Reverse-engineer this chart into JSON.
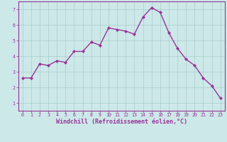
{
  "x": [
    0,
    1,
    2,
    3,
    4,
    5,
    6,
    7,
    8,
    9,
    10,
    11,
    12,
    13,
    14,
    15,
    16,
    17,
    18,
    19,
    20,
    21,
    22,
    23
  ],
  "y": [
    2.6,
    2.6,
    3.5,
    3.4,
    3.7,
    3.6,
    4.3,
    4.3,
    4.9,
    4.7,
    5.8,
    5.7,
    5.6,
    5.4,
    6.5,
    7.1,
    6.8,
    5.5,
    4.5,
    3.8,
    3.4,
    2.6,
    2.1,
    1.3
  ],
  "line_color": "#993399",
  "marker": "D",
  "markersize": 2.0,
  "linewidth": 1.0,
  "bg_color": "#cce8e8",
  "grid_color": "#aacccc",
  "xlabel": "Windchill (Refroidissement éolien,°C)",
  "xlabel_color": "#993399",
  "ylim": [
    0.5,
    7.5
  ],
  "xlim": [
    -0.5,
    23.5
  ],
  "yticks": [
    1,
    2,
    3,
    4,
    5,
    6,
    7
  ],
  "xticks": [
    0,
    1,
    2,
    3,
    4,
    5,
    6,
    7,
    8,
    9,
    10,
    11,
    12,
    13,
    14,
    15,
    16,
    17,
    18,
    19,
    20,
    21,
    22,
    23
  ],
  "tick_color": "#993399",
  "tick_fontsize": 4.8,
  "xlabel_fontsize": 6.0,
  "spine_color": "#993399"
}
